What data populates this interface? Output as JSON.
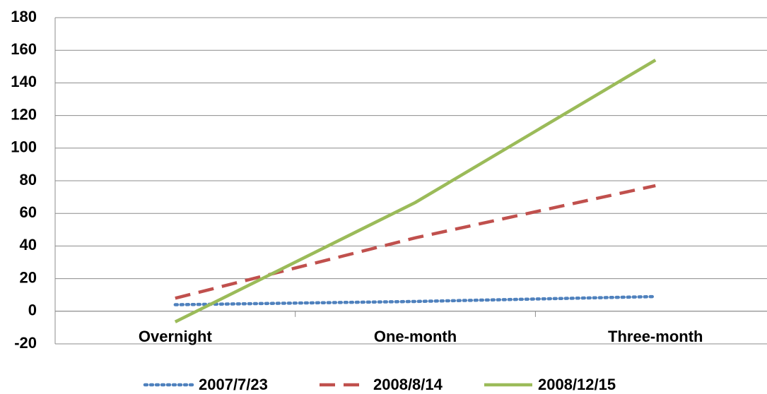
{
  "chart_data": {
    "type": "line",
    "categories": [
      "Overnight",
      "One-month",
      "Three-month"
    ],
    "series": [
      {
        "name": "2007/7/23",
        "color": "#4f81bd",
        "dash": "dotted",
        "values": [
          4,
          6,
          9
        ]
      },
      {
        "name": "2008/8/14",
        "color": "#c0504d",
        "dash": "dashed",
        "values": [
          8,
          45,
          77
        ]
      },
      {
        "name": "2008/12/15",
        "color": "#9bbb59",
        "dash": "solid",
        "values": [
          -6.5,
          66.7,
          154
        ]
      }
    ],
    "ylim": [
      -20,
      180
    ],
    "yticks": [
      -20,
      0,
      20,
      40,
      60,
      80,
      100,
      120,
      140,
      160,
      180
    ],
    "grid": true,
    "legend": "bottom"
  }
}
